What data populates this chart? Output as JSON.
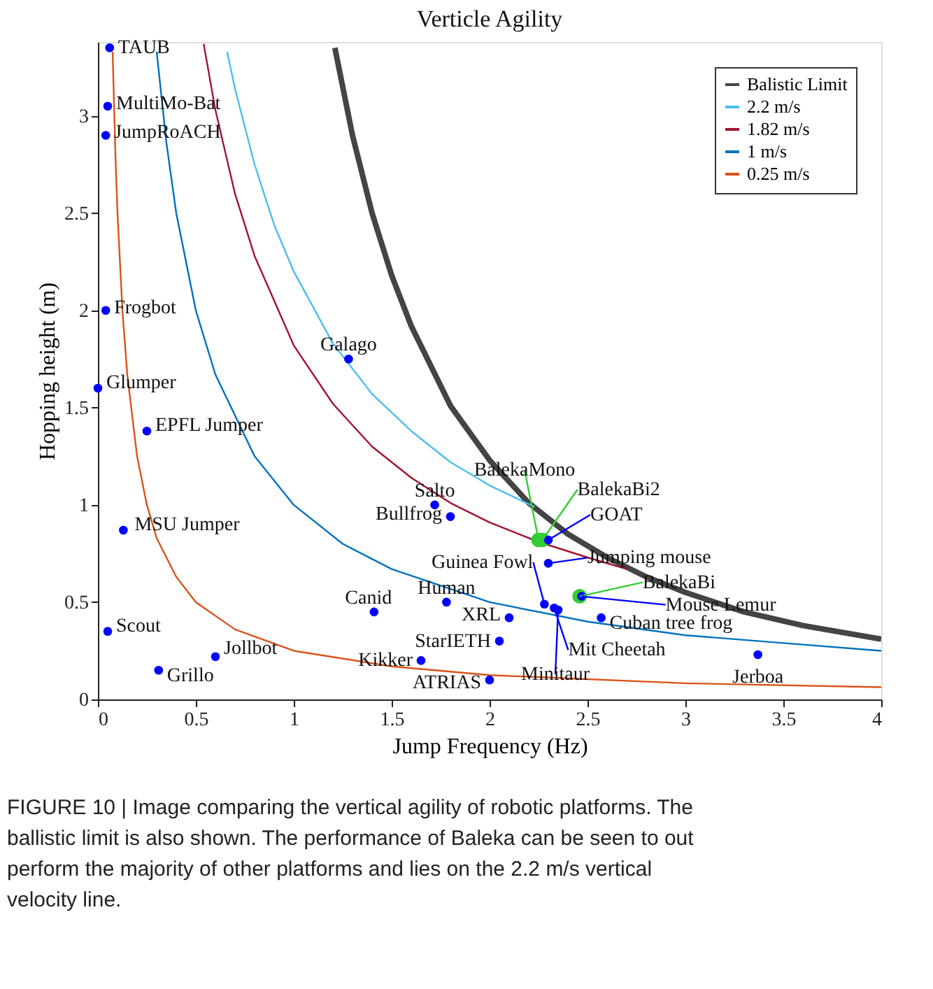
{
  "chart_data": {
    "type": "scatter",
    "title": "Verticle Agility",
    "xlabel": "Jump Frequency (Hz)",
    "ylabel": "Hopping height (m)",
    "xlim": [
      0,
      4
    ],
    "xticks": [
      0,
      0.5,
      1,
      1.5,
      2,
      2.5,
      3,
      3.5,
      4
    ],
    "ylim": [
      0,
      3.38
    ],
    "yticks": [
      0,
      0.5,
      1,
      1.5,
      2,
      2.5,
      3
    ],
    "grid": false,
    "legend": "top right",
    "series": [
      {
        "name": "Balistic Limit",
        "type": "line",
        "marker": "none",
        "color": "#444444",
        "x": [
          1.21,
          1.3,
          1.4,
          1.5,
          1.6,
          1.8,
          2.0,
          2.2,
          2.4,
          2.6,
          2.8,
          3.0,
          3.3,
          3.6,
          4.0
        ],
        "values": [
          3.35,
          2.9,
          2.5,
          2.18,
          1.92,
          1.51,
          1.23,
          1.01,
          0.85,
          0.73,
          0.63,
          0.55,
          0.45,
          0.38,
          0.31
        ]
      },
      {
        "name": "2.2 m/s",
        "type": "line",
        "marker": "none",
        "color": "#4dbeee",
        "x": [
          0.66,
          0.7,
          0.8,
          0.9,
          1.0,
          1.2,
          1.4,
          1.6,
          1.8,
          2.0,
          2.23
        ],
        "values": [
          3.33,
          3.14,
          2.75,
          2.44,
          2.2,
          1.83,
          1.57,
          1.38,
          1.22,
          1.1,
          0.99
        ]
      },
      {
        "name": "1.82 m/s",
        "type": "line",
        "marker": "none",
        "color": "#a2142f",
        "x": [
          0.54,
          0.6,
          0.7,
          0.8,
          1.0,
          1.2,
          1.4,
          1.6,
          1.8,
          2.0,
          2.25,
          2.5,
          2.7
        ],
        "values": [
          3.37,
          3.03,
          2.6,
          2.28,
          1.82,
          1.52,
          1.3,
          1.14,
          1.01,
          0.91,
          0.81,
          0.73,
          0.67
        ]
      },
      {
        "name": "1 m/s",
        "type": "line",
        "marker": "none",
        "color": "#0072bd",
        "x": [
          0.3,
          0.35,
          0.4,
          0.5,
          0.6,
          0.8,
          1.0,
          1.25,
          1.5,
          2.0,
          2.5,
          3.0,
          3.5,
          4.0
        ],
        "values": [
          3.33,
          2.86,
          2.5,
          2.0,
          1.67,
          1.25,
          1.0,
          0.8,
          0.67,
          0.5,
          0.4,
          0.33,
          0.29,
          0.25
        ]
      },
      {
        "name": "0.25 m/s",
        "type": "line",
        "marker": "none",
        "color": "#d95319",
        "x": [
          0.075,
          0.09,
          0.1,
          0.125,
          0.15,
          0.2,
          0.25,
          0.3,
          0.4,
          0.5,
          0.7,
          1.0,
          1.5,
          2.0,
          3.0,
          4.0
        ],
        "values": [
          3.33,
          2.78,
          2.5,
          2.0,
          1.67,
          1.25,
          1.0,
          0.83,
          0.63,
          0.5,
          0.36,
          0.25,
          0.17,
          0.125,
          0.083,
          0.063
        ]
      },
      {
        "marker": "circle",
        "color": "#0000ff",
        "x": [
          0.06,
          0.05,
          0.04,
          0.04,
          0.0,
          0.25,
          0.13,
          0.05,
          0.31,
          0.6,
          1.28,
          1.72,
          1.8,
          1.41,
          1.78,
          1.65,
          2.0,
          2.1,
          2.05,
          2.28,
          2.33,
          2.35,
          2.3,
          2.3,
          2.47,
          2.57,
          3.37
        ],
        "values": [
          3.35,
          3.05,
          2.9,
          2.0,
          1.6,
          1.38,
          0.87,
          0.35,
          0.15,
          0.22,
          1.75,
          1.0,
          0.94,
          0.45,
          0.5,
          0.2,
          0.1,
          0.42,
          0.3,
          0.49,
          0.47,
          0.46,
          0.7,
          0.82,
          0.53,
          0.42,
          0.23
        ]
      },
      {
        "marker": "circle",
        "color": "#33cc33",
        "x": [
          2.25,
          2.27,
          2.46
        ],
        "values": [
          0.82,
          0.82,
          0.53
        ]
      }
    ],
    "annotations": [
      {
        "text": "TAUB",
        "x": 0.06,
        "y": 3.35
      },
      {
        "text": "MultiMo-Bat",
        "x": 0.05,
        "y": 3.05
      },
      {
        "text": "JumpRoACH",
        "x": 0.04,
        "y": 2.9
      },
      {
        "text": "Frogbot",
        "x": 0.04,
        "y": 2.0
      },
      {
        "text": "Glumper",
        "x": 0.0,
        "y": 1.6
      },
      {
        "text": "EPFL Jumper",
        "x": 0.25,
        "y": 1.38
      },
      {
        "text": "MSU Jumper",
        "x": 0.13,
        "y": 0.87
      },
      {
        "text": "Scout",
        "x": 0.05,
        "y": 0.35
      },
      {
        "text": "Grillo",
        "x": 0.31,
        "y": 0.15
      },
      {
        "text": "Jollbot",
        "x": 0.6,
        "y": 0.22
      },
      {
        "text": "Galago",
        "x": 1.28,
        "y": 1.75
      },
      {
        "text": "Salto",
        "x": 1.72,
        "y": 1.0
      },
      {
        "text": "Bullfrog",
        "x": 1.8,
        "y": 0.94
      },
      {
        "text": "Canid",
        "x": 1.41,
        "y": 0.45
      },
      {
        "text": "Human",
        "x": 1.78,
        "y": 0.5
      },
      {
        "text": "Kikker",
        "x": 1.65,
        "y": 0.2
      },
      {
        "text": "ATRIAS",
        "x": 2.0,
        "y": 0.1
      },
      {
        "text": "XRL",
        "x": 2.1,
        "y": 0.42
      },
      {
        "text": "StarIETH",
        "x": 2.05,
        "y": 0.3
      },
      {
        "text": "Guinea Fowl",
        "x": 2.28,
        "y": 0.49
      },
      {
        "text": "Mit Cheetah",
        "x": 2.33,
        "y": 0.47
      },
      {
        "text": "Minitaur",
        "x": 2.35,
        "y": 0.46
      },
      {
        "text": "Jumping mouse",
        "x": 2.3,
        "y": 0.7
      },
      {
        "text": "GOAT",
        "x": 2.3,
        "y": 0.82
      },
      {
        "text": "BalekaMono",
        "x": 2.25,
        "y": 0.82
      },
      {
        "text": "BalekaBi2",
        "x": 2.27,
        "y": 0.82
      },
      {
        "text": "BalekaBi",
        "x": 2.46,
        "y": 0.53
      },
      {
        "text": "Mouse Lemur",
        "x": 2.47,
        "y": 0.53
      },
      {
        "text": "Cuban tree frog",
        "x": 2.57,
        "y": 0.42
      },
      {
        "text": "Jerboa",
        "x": 3.37,
        "y": 0.23
      },
      "FIGURE 10 | Image comparing the vertical agility of robotic platforms. The ballistic limit is also shown. The performance of Baleka can be seen to out perform the majority of other platforms and lies on the 2.2 m/s vertical velocity line."
    ]
  }
}
